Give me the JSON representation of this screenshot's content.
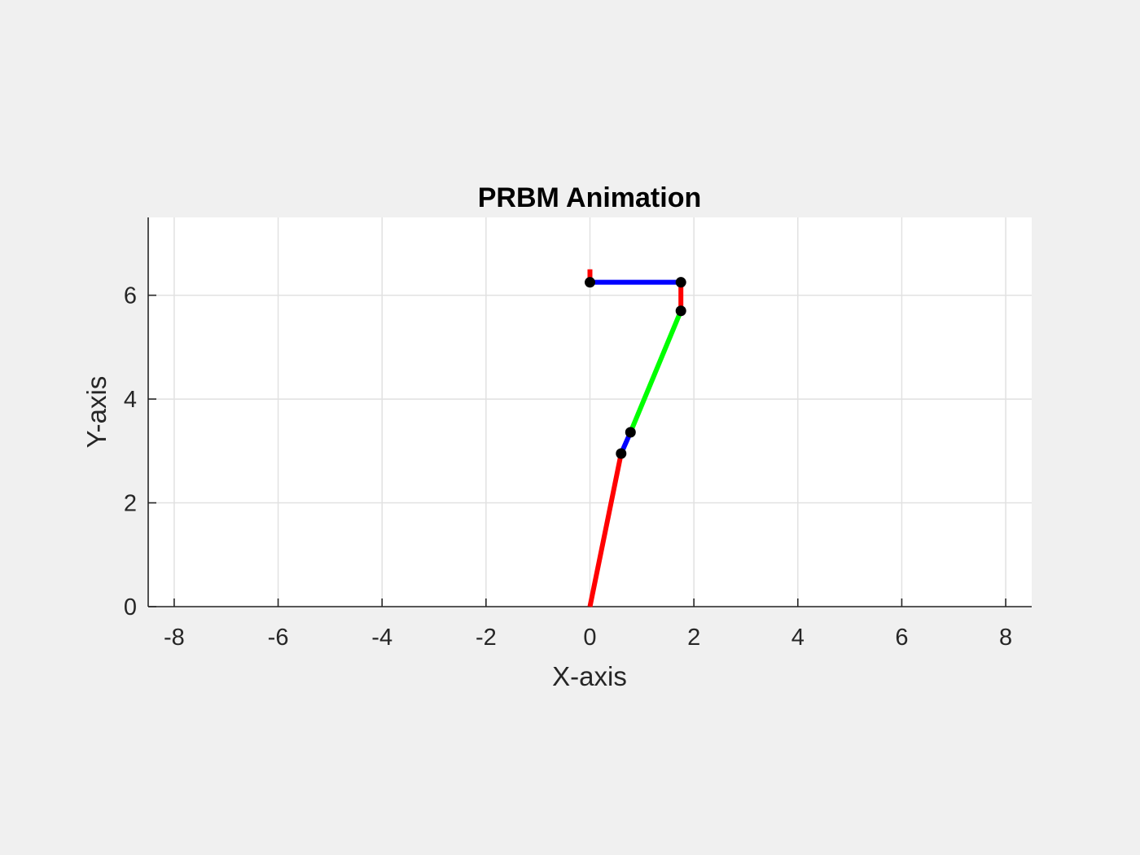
{
  "chart_data": {
    "type": "line",
    "title": "PRBM Animation",
    "xlabel": "X-axis",
    "ylabel": "Y-axis",
    "xlim": [
      -8.5,
      8.5
    ],
    "ylim": [
      0,
      7.5
    ],
    "xticks": [
      -8,
      -6,
      -4,
      -2,
      0,
      2,
      4,
      6,
      8
    ],
    "xtick_labels": [
      "-8",
      "-6",
      "-4",
      "-2",
      "0",
      "2",
      "4",
      "6",
      "8"
    ],
    "yticks": [
      0,
      2,
      4,
      6
    ],
    "ytick_labels": [
      "0",
      "2",
      "4",
      "6"
    ],
    "grid": true,
    "background_color": "#ffffff",
    "figure_color": "#f0f0f0",
    "grid_color": "#e1e1e1",
    "axis_color": "#262626",
    "series": [
      {
        "color": "#ff0000",
        "x": [
          0,
          0.6
        ],
        "y": [
          0,
          2.95
        ]
      },
      {
        "color": "#0000ff",
        "x": [
          0.6,
          0.78
        ],
        "y": [
          2.95,
          3.36
        ]
      },
      {
        "color": "#00ff00",
        "x": [
          0.78,
          1.75
        ],
        "y": [
          3.36,
          5.7
        ]
      },
      {
        "color": "#ff0000",
        "x": [
          1.75,
          1.75
        ],
        "y": [
          5.7,
          6.25
        ]
      },
      {
        "color": "#0000ff",
        "x": [
          1.75,
          0.0
        ],
        "y": [
          6.25,
          6.25
        ]
      },
      {
        "color": "#ff0000",
        "x": [
          0.0,
          0.0
        ],
        "y": [
          6.25,
          6.5
        ]
      }
    ],
    "joints": {
      "color": "#000000",
      "x": [
        0.6,
        0.78,
        1.75,
        1.75,
        0.0
      ],
      "y": [
        2.95,
        3.36,
        5.7,
        6.25,
        6.25
      ]
    }
  }
}
